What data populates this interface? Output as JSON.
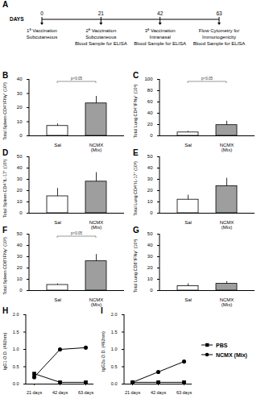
{
  "diagram": {
    "panel": "A",
    "axis_label": "DAYS",
    "xlim": [
      0,
      63
    ],
    "events": [
      {
        "day": 0,
        "label": [
          "1ª Vaccination",
          "Subcutaneous"
        ]
      },
      {
        "day": 21,
        "label": [
          "2ª Vaccination",
          "Subcutaneous",
          "Blood Sample for ELISA"
        ]
      },
      {
        "day": 42,
        "label": [
          "3ª Vaccination",
          "Intranasal",
          "Blood Sample for ELISA"
        ]
      },
      {
        "day": 63,
        "label": [
          "Flow Cytometry for",
          "Immunogenicity",
          "Blood Sample for ELISA"
        ]
      }
    ]
  },
  "chart_data": [
    {
      "panel": "B",
      "type": "bar",
      "ylabel": "Total Spleen CD4⁺IFNγ⁺ (10³)",
      "categories": [
        "Sal",
        "NCMX (Mix)"
      ],
      "values": [
        7,
        23
      ],
      "errors": [
        1.5,
        5
      ],
      "colors": [
        "#ffffff",
        "#9e9e9e"
      ],
      "ylim": [
        0,
        40
      ],
      "yticks": [
        0,
        10,
        20,
        30,
        40
      ],
      "annotations": [
        {
          "text": "p<0.05",
          "from": "Sal",
          "to": "NCMX (Mix)"
        }
      ]
    },
    {
      "panel": "C",
      "type": "bar",
      "ylabel": "Total Lung CD4⁺IFNγ⁺ (10³)",
      "categories": [
        "Sal",
        "NCMX (Mix)"
      ],
      "values": [
        6,
        19
      ],
      "errors": [
        2,
        7
      ],
      "colors": [
        "#ffffff",
        "#9e9e9e"
      ],
      "ylim": [
        0,
        100
      ],
      "yticks": [
        0,
        20,
        40,
        60,
        80,
        100
      ],
      "annotations": [
        {
          "text": "p<0.05",
          "from": "Sal",
          "to": "NCMX (Mix)"
        }
      ]
    },
    {
      "panel": "D",
      "type": "bar",
      "ylabel": "Total Spleen CD4⁺IL-17⁺ (10³)",
      "categories": [
        "Sal",
        "NCMX (Mix)"
      ],
      "values": [
        15,
        28
      ],
      "errors": [
        7,
        8
      ],
      "colors": [
        "#ffffff",
        "#9e9e9e"
      ],
      "ylim": [
        0,
        50
      ],
      "yticks": [
        0,
        10,
        20,
        30,
        40,
        50
      ]
    },
    {
      "panel": "E",
      "type": "bar",
      "ylabel": "Total Lung CD4⁺IL-17⁺ (10³)",
      "categories": [
        "Sal",
        "NCMX (Mix)"
      ],
      "values": [
        12,
        24
      ],
      "errors": [
        4,
        7
      ],
      "colors": [
        "#ffffff",
        "#9e9e9e"
      ],
      "ylim": [
        0,
        50
      ],
      "yticks": [
        0,
        10,
        20,
        30,
        40,
        50
      ]
    },
    {
      "panel": "F",
      "type": "bar",
      "ylabel": "Total Spleen CD8⁺IFNγ⁺ (10³)",
      "categories": [
        "Sal",
        "NCMX (Mix)"
      ],
      "values": [
        5,
        26
      ],
      "errors": [
        1,
        6
      ],
      "colors": [
        "#ffffff",
        "#9e9e9e"
      ],
      "ylim": [
        0,
        50
      ],
      "yticks": [
        0,
        10,
        20,
        30,
        40,
        50
      ],
      "annotations": [
        {
          "text": "p<0.05",
          "from": "Sal",
          "to": "NCMX (Mix)"
        }
      ]
    },
    {
      "panel": "G",
      "type": "bar",
      "ylabel": "Total Lung CD8⁺IFNγ⁺ (10³)",
      "categories": [
        "Sal",
        "NCMX (Mix)"
      ],
      "values": [
        4,
        6
      ],
      "errors": [
        2,
        2
      ],
      "colors": [
        "#ffffff",
        "#9e9e9e"
      ],
      "ylim": [
        0,
        50
      ],
      "yticks": [
        0,
        10,
        20,
        30,
        40,
        50
      ]
    },
    {
      "panel": "H",
      "type": "line",
      "ylabel": "IgG1 O.D. (492nm)",
      "categories": [
        "21 days",
        "42 days",
        "63 days"
      ],
      "series": [
        {
          "name": "PBS",
          "color": "#000000",
          "marker": "square",
          "values": [
            0.3,
            0.05,
            0.05
          ]
        },
        {
          "name": "NCMX (Mix)",
          "color": "#000000",
          "marker": "circle",
          "values": [
            0.2,
            1.0,
            1.05
          ]
        }
      ],
      "ylim": [
        0,
        2
      ],
      "yticks": [
        {
          "value": 0,
          "label": "0.0"
        },
        {
          "value": 0.5,
          "label": "0.5"
        },
        {
          "value": 1,
          "label": "1.0"
        },
        {
          "value": 1.5,
          "label": "1.5"
        },
        {
          "value": 2,
          "label": "2.0"
        }
      ]
    },
    {
      "panel": "I",
      "type": "line",
      "ylabel": "IgG2a O.D. (492nm)",
      "categories": [
        "21 days",
        "42 days",
        "63 days"
      ],
      "series": [
        {
          "name": "PBS",
          "color": "#000000",
          "marker": "square",
          "values": [
            0.05,
            0.05,
            0.05
          ]
        },
        {
          "name": "NCMX (Mix)",
          "color": "#000000",
          "marker": "circle",
          "values": [
            0.05,
            0.35,
            0.65
          ]
        }
      ],
      "legend": "right",
      "ylim": [
        0,
        2
      ],
      "yticks": [
        {
          "value": 0,
          "label": "0.0"
        },
        {
          "value": 0.5,
          "label": "0.5"
        },
        {
          "value": 1,
          "label": "1.0"
        },
        {
          "value": 1.5,
          "label": "1.5"
        },
        {
          "value": 2,
          "label": "2.0"
        }
      ]
    }
  ]
}
